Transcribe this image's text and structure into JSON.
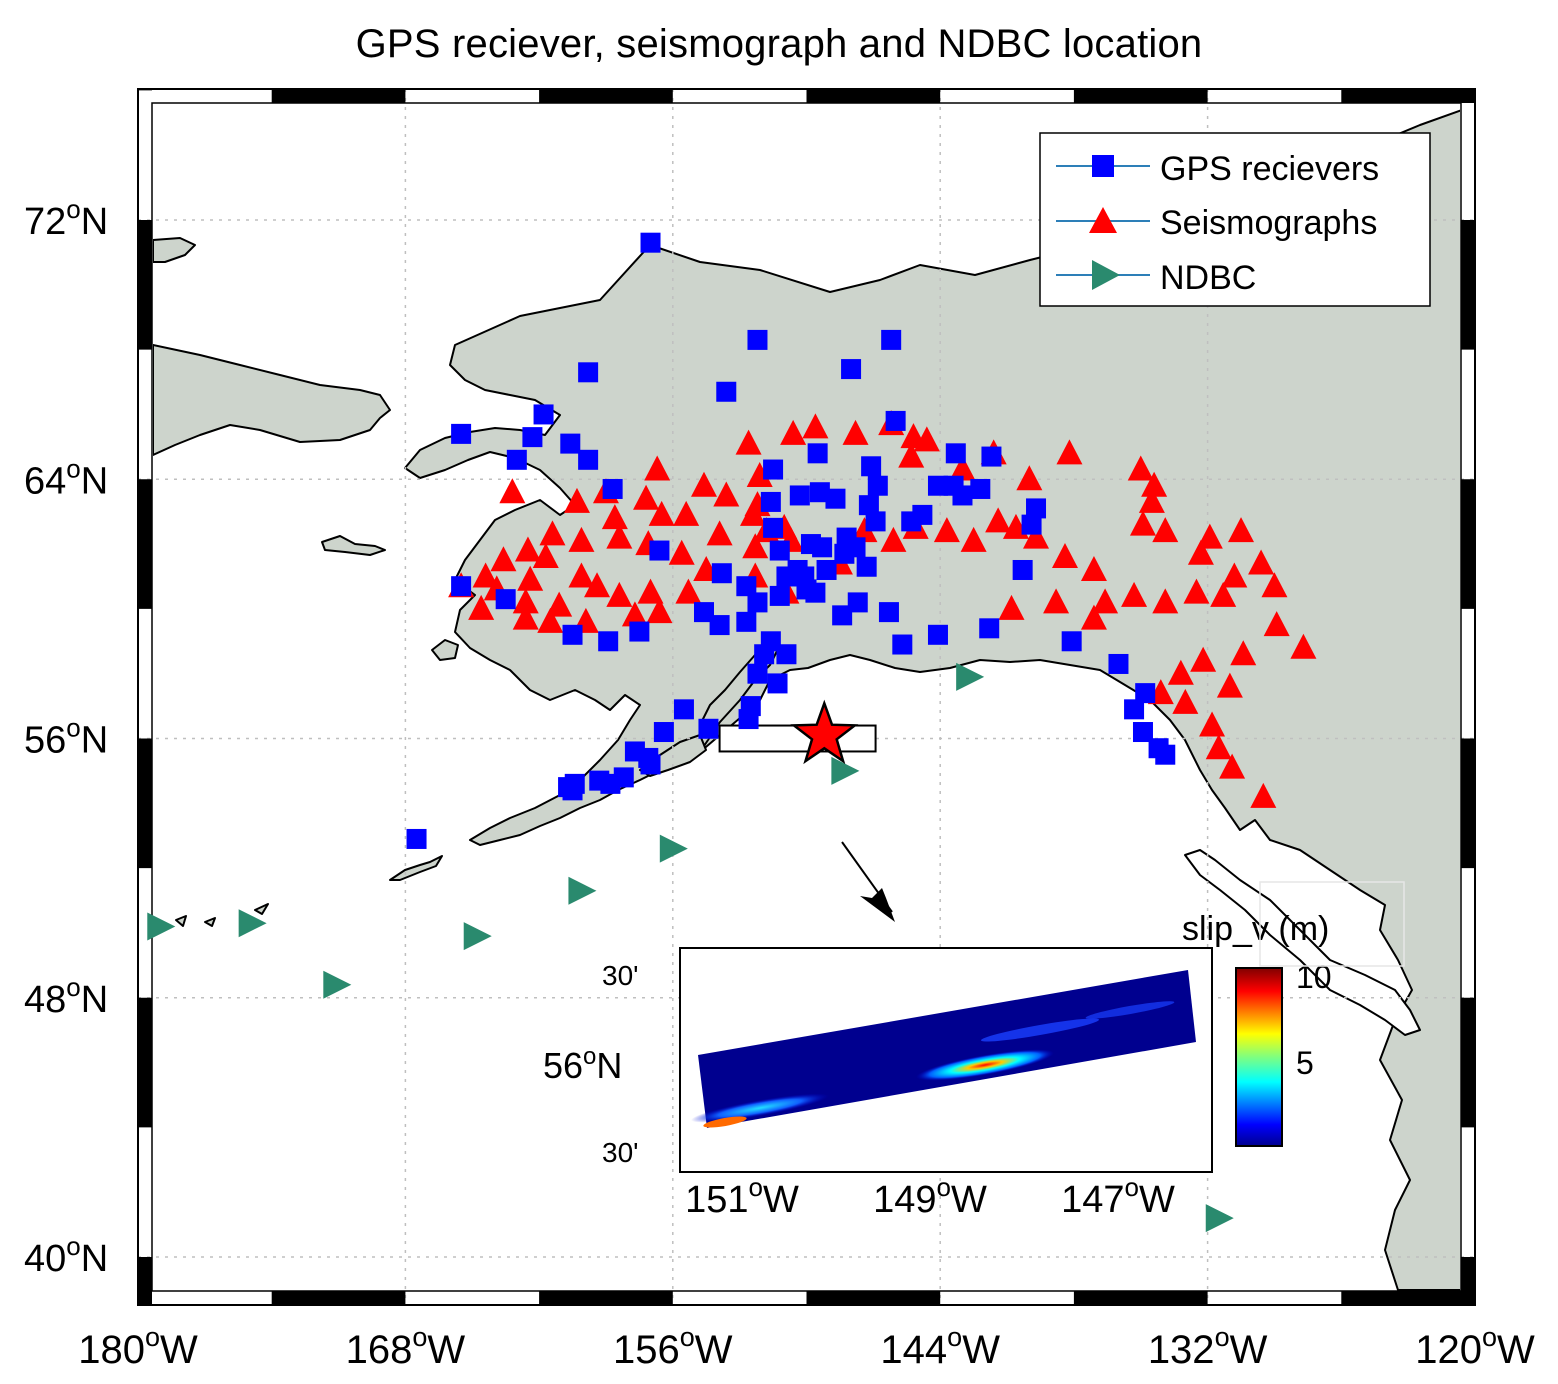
{
  "title": "GPS reciever, seismograph and NDBC location",
  "map": {
    "lon_range": [
      -180,
      -120
    ],
    "lat_range": [
      38,
      77
    ],
    "lat_ticks": [
      {
        "value": 72,
        "label": "72",
        "suffix": "N"
      },
      {
        "value": 64,
        "label": "64",
        "suffix": "N"
      },
      {
        "value": 56,
        "label": "56",
        "suffix": "N"
      },
      {
        "value": 48,
        "label": "48",
        "suffix": "N"
      },
      {
        "value": 40,
        "label": "40",
        "suffix": "N"
      }
    ],
    "lon_ticks": [
      {
        "value": -180,
        "label": "180",
        "suffix": "W"
      },
      {
        "value": -168,
        "label": "168",
        "suffix": "W"
      },
      {
        "value": -156,
        "label": "156",
        "suffix": "W"
      },
      {
        "value": -144,
        "label": "144",
        "suffix": "W"
      },
      {
        "value": -132,
        "label": "132",
        "suffix": "W"
      },
      {
        "value": -120,
        "label": "120",
        "suffix": "W"
      }
    ],
    "grid": true,
    "land_color": "#cdd4cc",
    "gps_color": "#0000ff",
    "seismo_color": "#ff0000",
    "ndbc_color": "#2a8a6e",
    "epicenter_color": "#ff0000"
  },
  "legend": {
    "placement": "top-right",
    "items": [
      {
        "label": "GPS recievers",
        "marker": "square",
        "color": "#0000ff"
      },
      {
        "label": "Seismographs",
        "marker": "triangle-up",
        "color": "#ff0000"
      },
      {
        "label": "NDBC",
        "marker": "triangle-right",
        "color": "#2a8a6e"
      }
    ]
  },
  "gps_stations": [
    [
      -157,
      71.3
    ],
    [
      -159.8,
      67.3
    ],
    [
      -152.2,
      68.3
    ],
    [
      -148,
      67.4
    ],
    [
      -146.2,
      68.3
    ],
    [
      -153.6,
      66.7
    ],
    [
      -146,
      65.8
    ],
    [
      -165.5,
      65.4
    ],
    [
      -161.8,
      66.0
    ],
    [
      -160.6,
      65.1
    ],
    [
      -162.3,
      65.3
    ],
    [
      -163,
      64.6
    ],
    [
      -159.8,
      64.6
    ],
    [
      -158.7,
      63.7
    ],
    [
      -151.5,
      64.3
    ],
    [
      -149.5,
      64.8
    ],
    [
      -147.1,
      64.4
    ],
    [
      -146.8,
      63.8
    ],
    [
      -143.3,
      64.8
    ],
    [
      -141.7,
      64.7
    ],
    [
      -151.6,
      63.3
    ],
    [
      -150.3,
      63.5
    ],
    [
      -149.4,
      63.6
    ],
    [
      -148.7,
      63.4
    ],
    [
      -147.2,
      63.2
    ],
    [
      -146.9,
      62.7
    ],
    [
      -145.3,
      62.7
    ],
    [
      -144.8,
      62.9
    ],
    [
      -151.5,
      62.5
    ],
    [
      -151.2,
      61.8
    ],
    [
      -150.4,
      61.2
    ],
    [
      -150.1,
      61.0
    ],
    [
      -150.9,
      61.0
    ],
    [
      -150.0,
      60.6
    ],
    [
      -151.2,
      60.4
    ],
    [
      -152.2,
      60.2
    ],
    [
      -152.7,
      60.7
    ],
    [
      -149.1,
      61.2
    ],
    [
      -149.6,
      60.5
    ],
    [
      -147.7,
      60.2
    ],
    [
      -148.4,
      59.8
    ],
    [
      -146.3,
      59.9
    ],
    [
      -145.7,
      58.9
    ],
    [
      -144.1,
      59.2
    ],
    [
      -141.8,
      59.4
    ],
    [
      -140.3,
      61.2
    ],
    [
      -138.1,
      59.0
    ],
    [
      -136.0,
      58.3
    ],
    [
      -134.8,
      57.4
    ],
    [
      -135.3,
      56.9
    ],
    [
      -134.9,
      56.2
    ],
    [
      -134.2,
      55.7
    ],
    [
      -133.9,
      55.5
    ],
    [
      -153.9,
      59.5
    ],
    [
      -154.6,
      59.9
    ],
    [
      -152.7,
      59.6
    ],
    [
      -151.6,
      59.0
    ],
    [
      -151.9,
      58.6
    ],
    [
      -150.9,
      58.6
    ],
    [
      -152.2,
      58.0
    ],
    [
      -151.3,
      57.7
    ],
    [
      -152.5,
      57.0
    ],
    [
      -152.6,
      56.6
    ],
    [
      -154.4,
      56.3
    ],
    [
      -155.5,
      56.9
    ],
    [
      -156.4,
      56.2
    ],
    [
      -157.7,
      55.6
    ],
    [
      -157.1,
      55.4
    ],
    [
      -157.0,
      55.2
    ],
    [
      -158.2,
      54.8
    ],
    [
      -158.8,
      54.6
    ],
    [
      -159.3,
      54.7
    ],
    [
      -160.4,
      54.6
    ],
    [
      -160.7,
      54.5
    ],
    [
      -160.5,
      54.4
    ],
    [
      -167.5,
      52.9
    ],
    [
      -165.5,
      60.7
    ],
    [
      -158.9,
      59.0
    ],
    [
      -157.5,
      59.3
    ],
    [
      -160.5,
      59.2
    ],
    [
      -163.5,
      60.3
    ],
    [
      -139.9,
      62.6
    ],
    [
      -139.7,
      63.1
    ],
    [
      -142.2,
      63.7
    ],
    [
      -143.4,
      63.8
    ],
    [
      -143.0,
      63.5
    ],
    [
      -144.1,
      63.8
    ],
    [
      -148.2,
      62.2
    ],
    [
      -148.3,
      61.7
    ],
    [
      -149.3,
      61.9
    ],
    [
      -149.8,
      62.0
    ],
    [
      -147.3,
      61.3
    ],
    [
      -147.8,
      61.9
    ],
    [
      -156.6,
      61.8
    ],
    [
      -153.8,
      61.1
    ]
  ],
  "seismographs": [
    [
      -152.6,
      65.1
    ],
    [
      -150.6,
      65.4
    ],
    [
      -149.6,
      65.6
    ],
    [
      -147.8,
      65.4
    ],
    [
      -146.2,
      65.7
    ],
    [
      -144.6,
      65.2
    ],
    [
      -143.0,
      64.3
    ],
    [
      -140.0,
      64.0
    ],
    [
      -138.2,
      64.8
    ],
    [
      -135.0,
      64.3
    ],
    [
      -134.4,
      63.8
    ],
    [
      -141.6,
      64.8
    ],
    [
      -145.2,
      65.3
    ],
    [
      -145.3,
      64.7
    ],
    [
      -152.1,
      64.1
    ],
    [
      -153.6,
      63.5
    ],
    [
      -154.6,
      63.8
    ],
    [
      -152.2,
      63.2
    ],
    [
      -151.8,
      62.4
    ],
    [
      -152.3,
      61.9
    ],
    [
      -151.0,
      62.5
    ],
    [
      -150.7,
      62.1
    ],
    [
      -156.7,
      64.3
    ],
    [
      -157.2,
      63.4
    ],
    [
      -158.6,
      62.8
    ],
    [
      -161.4,
      62.3
    ],
    [
      -162.5,
      61.8
    ],
    [
      -163.6,
      61.5
    ],
    [
      -164.4,
      61.0
    ],
    [
      -161.7,
      61.6
    ],
    [
      -160.1,
      62.1
    ],
    [
      -158.4,
      62.2
    ],
    [
      -157.1,
      62.0
    ],
    [
      -155.6,
      61.7
    ],
    [
      -154.5,
      61.2
    ],
    [
      -152.3,
      61.0
    ],
    [
      -150.9,
      60.5
    ],
    [
      -148.5,
      61.4
    ],
    [
      -147.4,
      62.4
    ],
    [
      -146.1,
      62.1
    ],
    [
      -145.1,
      62.5
    ],
    [
      -143.7,
      62.4
    ],
    [
      -142.5,
      62.1
    ],
    [
      -141.4,
      62.7
    ],
    [
      -140.6,
      62.5
    ],
    [
      -139.7,
      62.2
    ],
    [
      -138.4,
      61.6
    ],
    [
      -137.1,
      61.2
    ],
    [
      -134.5,
      63.3
    ],
    [
      -134.9,
      62.6
    ],
    [
      -133.9,
      62.4
    ],
    [
      -132.3,
      61.7
    ],
    [
      -131.9,
      62.2
    ],
    [
      -130.5,
      62.4
    ],
    [
      -129.6,
      61.4
    ],
    [
      -129.0,
      60.7
    ],
    [
      -130.8,
      61.0
    ],
    [
      -131.3,
      60.4
    ],
    [
      -132.5,
      60.5
    ],
    [
      -133.9,
      60.2
    ],
    [
      -135.3,
      60.4
    ],
    [
      -136.6,
      60.2
    ],
    [
      -137.1,
      59.7
    ],
    [
      -138.8,
      60.2
    ],
    [
      -140.8,
      60.0
    ],
    [
      -128.9,
      59.5
    ],
    [
      -127.7,
      58.8
    ],
    [
      -130.4,
      58.6
    ],
    [
      -132.2,
      58.4
    ],
    [
      -133.2,
      58.0
    ],
    [
      -134.1,
      57.4
    ],
    [
      -133.0,
      57.1
    ],
    [
      -131.8,
      56.4
    ],
    [
      -131.5,
      55.7
    ],
    [
      -130.9,
      55.1
    ],
    [
      -129.5,
      54.2
    ],
    [
      -131.0,
      57.6
    ],
    [
      -160.1,
      61.0
    ],
    [
      -162.4,
      60.9
    ],
    [
      -163.9,
      60.6
    ],
    [
      -164.6,
      60.0
    ],
    [
      -162.6,
      60.2
    ],
    [
      -161.1,
      60.1
    ],
    [
      -159.4,
      60.7
    ],
    [
      -158.4,
      60.4
    ],
    [
      -157.0,
      60.5
    ],
    [
      -155.3,
      60.5
    ],
    [
      -156.6,
      59.9
    ],
    [
      -157.7,
      59.8
    ],
    [
      -159.9,
      59.6
    ],
    [
      -161.5,
      59.6
    ],
    [
      -162.6,
      59.7
    ],
    [
      -153.9,
      62.3
    ],
    [
      -155.4,
      62.9
    ],
    [
      -156.5,
      62.9
    ],
    [
      -160.3,
      63.3
    ],
    [
      -159.0,
      63.6
    ],
    [
      -163.2,
      63.6
    ],
    [
      -165.5,
      60.7
    ],
    [
      -152.4,
      62.9
    ]
  ],
  "ndbc_buoys": [
    [
      -142.7,
      57.9
    ],
    [
      -148.3,
      55.0
    ],
    [
      -156.0,
      52.6
    ],
    [
      -160.1,
      51.3
    ],
    [
      -164.8,
      49.9
    ],
    [
      -171.1,
      48.4
    ],
    [
      -174.9,
      50.3
    ],
    [
      -179.0,
      50.2
    ],
    [
      -131.5,
      41.2
    ]
  ],
  "epicenter": {
    "lon": -149.2,
    "lat": 56.1
  },
  "rupture_box": {
    "lon_min": -153.9,
    "lon_max": -146.9,
    "lat_min": 55.6,
    "lat_max": 56.4
  },
  "inset": {
    "lat_tick_main": "56",
    "lat_tick_main_suffix": "N",
    "lat_tick_minor_top": "30'",
    "lat_tick_minor_bottom": "30'",
    "lon_ticks": [
      {
        "label": "151",
        "suffix": "W"
      },
      {
        "label": "149",
        "suffix": "W"
      },
      {
        "label": "147",
        "suffix": "W"
      }
    ]
  },
  "colorbar": {
    "title": "slip_v (m)",
    "ticks": [
      {
        "value": 10,
        "label": "10"
      },
      {
        "value": 5,
        "label": "5"
      }
    ],
    "range": [
      0,
      10
    ],
    "colormap": "jet"
  }
}
